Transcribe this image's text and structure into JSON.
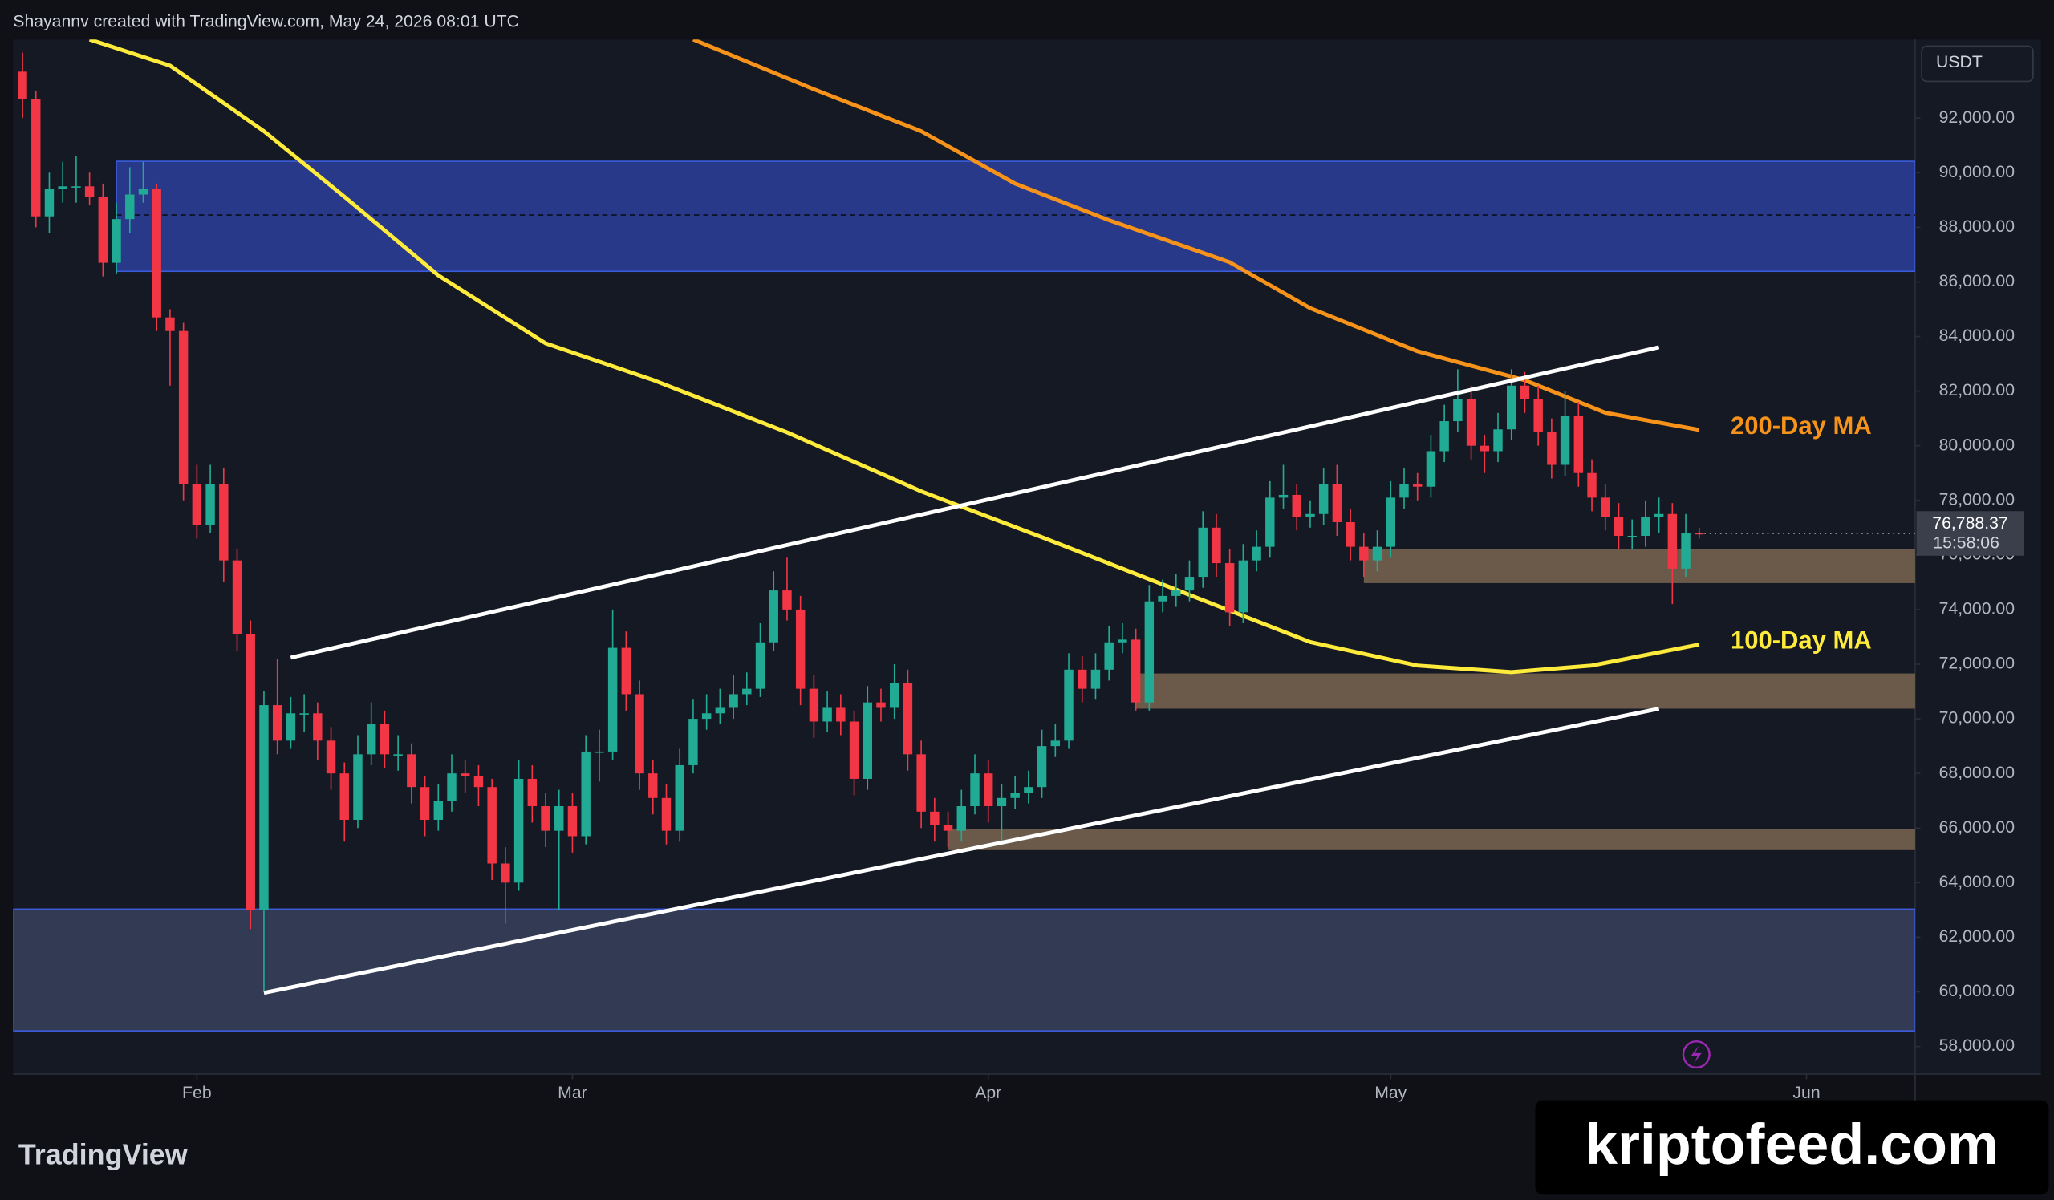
{
  "header": "Shayannv created with TradingView.com, May 24, 2026 08:01 UTC",
  "currency": "USDT",
  "countdown": "15:58:06",
  "branding": "TradingView",
  "watermark": "kriptofeed.com",
  "chart_data": {
    "type": "candlestick",
    "up_color": "#22ab94",
    "down_color": "#f23645",
    "grid": false,
    "xlim": [
      -0.7,
      141.1
    ],
    "xticks": [
      {
        "value": 13,
        "label": "Feb"
      },
      {
        "value": 41,
        "label": "Mar"
      },
      {
        "value": 72,
        "label": "Apr"
      },
      {
        "value": 102,
        "label": "May"
      },
      {
        "value": 133,
        "label": "Jun"
      }
    ],
    "ylim": [
      56988,
      94878
    ],
    "yticks": [
      {
        "value": 58000,
        "label": "58,000.00"
      },
      {
        "value": 60000,
        "label": "60,000.00"
      },
      {
        "value": 62000,
        "label": "62,000.00"
      },
      {
        "value": 64000,
        "label": "64,000.00"
      },
      {
        "value": 66000,
        "label": "66,000.00"
      },
      {
        "value": 68000,
        "label": "68,000.00"
      },
      {
        "value": 70000,
        "label": "70,000.00"
      },
      {
        "value": 72000,
        "label": "72,000.00"
      },
      {
        "value": 74000,
        "label": "74,000.00"
      },
      {
        "value": 76000,
        "label": "76,000.00"
      },
      {
        "value": 78000,
        "label": "78,000.00"
      },
      {
        "value": 80000,
        "label": "80,000.00"
      },
      {
        "value": 82000,
        "label": "82,000.00"
      },
      {
        "value": 84000,
        "label": "84,000.00"
      },
      {
        "value": 86000,
        "label": "86,000.00"
      },
      {
        "value": 88000,
        "label": "88,000.00"
      },
      {
        "value": 90000,
        "label": "90,000.00"
      },
      {
        "value": 92000,
        "label": "92,000.00"
      }
    ],
    "last_price": {
      "value": 76788.37,
      "label": "76,788.37"
    },
    "candles": [
      [
        93700,
        94400,
        92000,
        92700
      ],
      [
        92700,
        93000,
        88000,
        88400
      ],
      [
        88400,
        90000,
        87800,
        89400
      ],
      [
        89400,
        90400,
        88900,
        89500
      ],
      [
        89500,
        90600,
        88900,
        89500
      ],
      [
        89500,
        90000,
        88800,
        89100
      ],
      [
        89100,
        89600,
        86200,
        86700
      ],
      [
        86700,
        88900,
        86300,
        88300
      ],
      [
        88300,
        90200,
        87800,
        89200
      ],
      [
        89200,
        90400,
        88900,
        89400
      ],
      [
        89400,
        89600,
        84200,
        84700
      ],
      [
        84700,
        85000,
        82200,
        84200
      ],
      [
        84200,
        84500,
        78000,
        78600
      ],
      [
        78600,
        79300,
        76600,
        77100
      ],
      [
        77100,
        79300,
        76800,
        78600
      ],
      [
        78600,
        79200,
        75000,
        75800
      ],
      [
        75800,
        76200,
        72500,
        73100
      ],
      [
        73100,
        73600,
        62300,
        63000
      ],
      [
        63000,
        71000,
        60000,
        70500
      ],
      [
        70500,
        72200,
        68700,
        69200
      ],
      [
        69200,
        70800,
        68900,
        70200
      ],
      [
        70200,
        70900,
        69500,
        70200
      ],
      [
        70200,
        70600,
        68500,
        69200
      ],
      [
        69200,
        69700,
        67400,
        68000
      ],
      [
        68000,
        68400,
        65500,
        66300
      ],
      [
        66300,
        69400,
        66000,
        68700
      ],
      [
        68700,
        70600,
        68300,
        69800
      ],
      [
        69800,
        70300,
        68200,
        68700
      ],
      [
        68700,
        69400,
        68100,
        68700
      ],
      [
        68700,
        69100,
        66900,
        67500
      ],
      [
        67500,
        67900,
        65700,
        66300
      ],
      [
        66300,
        67600,
        65900,
        67000
      ],
      [
        67000,
        68700,
        66600,
        68000
      ],
      [
        68000,
        68500,
        67300,
        67900
      ],
      [
        67900,
        68300,
        66800,
        67500
      ],
      [
        67500,
        67800,
        64100,
        64700
      ],
      [
        64700,
        65300,
        62500,
        64000
      ],
      [
        64000,
        68500,
        63700,
        67800
      ],
      [
        67800,
        68300,
        66200,
        66800
      ],
      [
        66800,
        67300,
        65300,
        65900
      ],
      [
        65900,
        67400,
        63000,
        66800
      ],
      [
        66800,
        67300,
        65100,
        65700
      ],
      [
        65700,
        69400,
        65400,
        68800
      ],
      [
        68800,
        69600,
        67700,
        68800
      ],
      [
        68800,
        74000,
        68500,
        72600
      ],
      [
        72600,
        73200,
        70300,
        70900
      ],
      [
        70900,
        71400,
        67400,
        68000
      ],
      [
        68000,
        68500,
        66500,
        67100
      ],
      [
        67100,
        67600,
        65400,
        65900
      ],
      [
        65900,
        68900,
        65500,
        68300
      ],
      [
        68300,
        70700,
        68000,
        70000
      ],
      [
        70000,
        70900,
        69600,
        70200
      ],
      [
        70200,
        71100,
        69800,
        70400
      ],
      [
        70400,
        71600,
        70000,
        70900
      ],
      [
        70900,
        71700,
        70500,
        71100
      ],
      [
        71100,
        73500,
        70800,
        72800
      ],
      [
        72800,
        75400,
        72500,
        74700
      ],
      [
        74700,
        75900,
        73600,
        74000
      ],
      [
        74000,
        74500,
        70500,
        71100
      ],
      [
        71100,
        71600,
        69300,
        69900
      ],
      [
        69900,
        71000,
        69500,
        70400
      ],
      [
        70400,
        70900,
        69400,
        69900
      ],
      [
        69900,
        70300,
        67200,
        67800
      ],
      [
        67800,
        71200,
        67400,
        70600
      ],
      [
        70600,
        71100,
        69900,
        70400
      ],
      [
        70400,
        72000,
        70000,
        71300
      ],
      [
        71300,
        71800,
        68100,
        68700
      ],
      [
        68700,
        69200,
        66000,
        66600
      ],
      [
        66600,
        67100,
        65500,
        66100
      ],
      [
        66100,
        66600,
        65300,
        65900
      ],
      [
        65900,
        67400,
        65500,
        66800
      ],
      [
        66800,
        68700,
        66500,
        68000
      ],
      [
        68000,
        68500,
        66200,
        66800
      ],
      [
        66800,
        67600,
        65400,
        67100
      ],
      [
        67100,
        67900,
        66700,
        67300
      ],
      [
        67300,
        68100,
        66900,
        67500
      ],
      [
        67500,
        69600,
        67100,
        69000
      ],
      [
        69000,
        69800,
        68600,
        69200
      ],
      [
        69200,
        72400,
        68900,
        71800
      ],
      [
        71800,
        72300,
        70600,
        71100
      ],
      [
        71100,
        72400,
        70700,
        71800
      ],
      [
        71800,
        73400,
        71400,
        72800
      ],
      [
        72800,
        73500,
        72400,
        72900
      ],
      [
        72900,
        73300,
        70300,
        70600
      ],
      [
        70600,
        74900,
        70300,
        74300
      ],
      [
        74300,
        75100,
        73900,
        74500
      ],
      [
        74500,
        75300,
        74100,
        74700
      ],
      [
        74700,
        75800,
        74300,
        75200
      ],
      [
        75200,
        77600,
        74800,
        77000
      ],
      [
        77000,
        77500,
        75200,
        75700
      ],
      [
        75700,
        76200,
        73400,
        73900
      ],
      [
        73900,
        76400,
        73500,
        75800
      ],
      [
        75800,
        76900,
        75400,
        76300
      ],
      [
        76300,
        78700,
        75900,
        78100
      ],
      [
        78100,
        79300,
        77700,
        78200
      ],
      [
        78200,
        78600,
        76900,
        77400
      ],
      [
        77400,
        78000,
        77000,
        77500
      ],
      [
        77500,
        79200,
        77100,
        78600
      ],
      [
        78600,
        79300,
        76700,
        77200
      ],
      [
        77200,
        77700,
        75800,
        76300
      ],
      [
        76300,
        76800,
        75200,
        75800
      ],
      [
        75800,
        76900,
        75400,
        76300
      ],
      [
        76300,
        78700,
        75900,
        78100
      ],
      [
        78100,
        79200,
        77700,
        78600
      ],
      [
        78600,
        79000,
        78000,
        78500
      ],
      [
        78500,
        80400,
        78100,
        79800
      ],
      [
        79800,
        81500,
        79400,
        80900
      ],
      [
        80900,
        82800,
        80500,
        81700
      ],
      [
        81700,
        82200,
        79500,
        80000
      ],
      [
        80000,
        80400,
        79000,
        79800
      ],
      [
        79800,
        81200,
        79400,
        80600
      ],
      [
        80600,
        82800,
        80200,
        82200
      ],
      [
        82200,
        82700,
        81200,
        81700
      ],
      [
        81700,
        82200,
        80000,
        80500
      ],
      [
        80500,
        81000,
        78800,
        79300
      ],
      [
        79300,
        82000,
        78900,
        81100
      ],
      [
        81100,
        81600,
        78500,
        79000
      ],
      [
        79000,
        79500,
        77600,
        78100
      ],
      [
        78100,
        78600,
        76900,
        77400
      ],
      [
        77400,
        77900,
        76200,
        76700
      ],
      [
        76700,
        77300,
        76200,
        76700
      ],
      [
        76700,
        78000,
        76300,
        77400
      ],
      [
        77400,
        78100,
        76800,
        77500
      ],
      [
        77500,
        77900,
        74200,
        75500
      ],
      [
        75500,
        77500,
        75200,
        76800
      ],
      [
        76800,
        77000,
        76600,
        76788.37
      ]
    ],
    "series": [
      {
        "name": "200-Day MA",
        "color": "#f7931a",
        "x": [
          50,
          59,
          67,
          74,
          81,
          90,
          96,
          104,
          112,
          118,
          125
        ],
        "values": [
          94880,
          93055,
          91520,
          89600,
          88260,
          86720,
          85040,
          83460,
          82400,
          81210,
          80580
        ]
      },
      {
        "name": "100-Day MA",
        "color": "#ffeb3b",
        "x": [
          5,
          11,
          18,
          24,
          31,
          39,
          47,
          57,
          67,
          76,
          86,
          96,
          104,
          111,
          117,
          125
        ],
        "values": [
          94880,
          93920,
          91520,
          89120,
          86240,
          83750,
          82410,
          80490,
          78330,
          76650,
          74730,
          72810,
          71950,
          71710,
          71950,
          72720
        ]
      }
    ],
    "zones": [
      {
        "from": 7,
        "ylim": [
          86388,
          90417
        ],
        "color": "#2a3f9a",
        "mid": 88450
      },
      {
        "from": -0.7,
        "ylim": [
          58570,
          63030
        ],
        "color": "#37425c"
      },
      {
        "from": 100,
        "ylim": [
          74970,
          76220
        ],
        "color": "#7a6650"
      },
      {
        "from": 83,
        "ylim": [
          70370,
          71660
        ],
        "color": "#7a6650"
      },
      {
        "from": 69,
        "ylim": [
          65190,
          65960
        ],
        "color": "#7a6650"
      }
    ],
    "channel": [
      {
        "x": [
          20,
          122
        ],
        "values": [
          72240,
          83607
        ]
      },
      {
        "x": [
          18,
          122
        ],
        "values": [
          59962,
          70370
        ]
      }
    ]
  }
}
